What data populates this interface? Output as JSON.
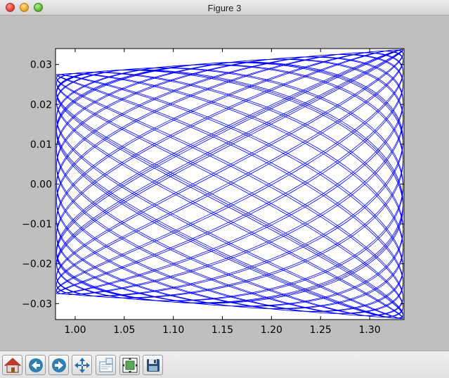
{
  "window": {
    "title": "Figure 3"
  },
  "toolbar": {
    "buttons": [
      {
        "name": "home-button",
        "icon": "home-icon"
      },
      {
        "name": "back-button",
        "icon": "arrow-left-icon"
      },
      {
        "name": "forward-button",
        "icon": "arrow-right-icon"
      },
      {
        "name": "pan-button",
        "icon": "move-icon"
      },
      {
        "name": "zoom-button",
        "icon": "zoom-rect-icon"
      },
      {
        "name": "configure-subplots-button",
        "icon": "subplots-icon"
      },
      {
        "name": "save-button",
        "icon": "save-icon"
      }
    ]
  },
  "chart_data": {
    "type": "line",
    "title": "",
    "xlabel": "",
    "ylabel": "",
    "xlim": [
      0.98,
      1.335
    ],
    "ylim": [
      -0.034,
      0.034
    ],
    "x_ticks": [
      1.0,
      1.05,
      1.1,
      1.15,
      1.2,
      1.25,
      1.3
    ],
    "x_tick_labels": [
      "1.00",
      "1.05",
      "1.10",
      "1.15",
      "1.20",
      "1.25",
      "1.30"
    ],
    "y_ticks": [
      0.03,
      0.02,
      0.01,
      0.0,
      -0.01,
      -0.02,
      -0.03
    ],
    "y_tick_labels": [
      "0.03",
      "0.02",
      "0.01",
      "0.00",
      "−0.01",
      "−0.02",
      "−0.03"
    ],
    "grid": false,
    "series_color": "#0000ff",
    "curve": {
      "x_min": 0.981,
      "x_max": 1.334,
      "amp_left": 0.0275,
      "amp_right": 0.0338,
      "x_cycles": 41.5,
      "y_cycles_ratio": 0.737,
      "samples": 7000
    }
  }
}
